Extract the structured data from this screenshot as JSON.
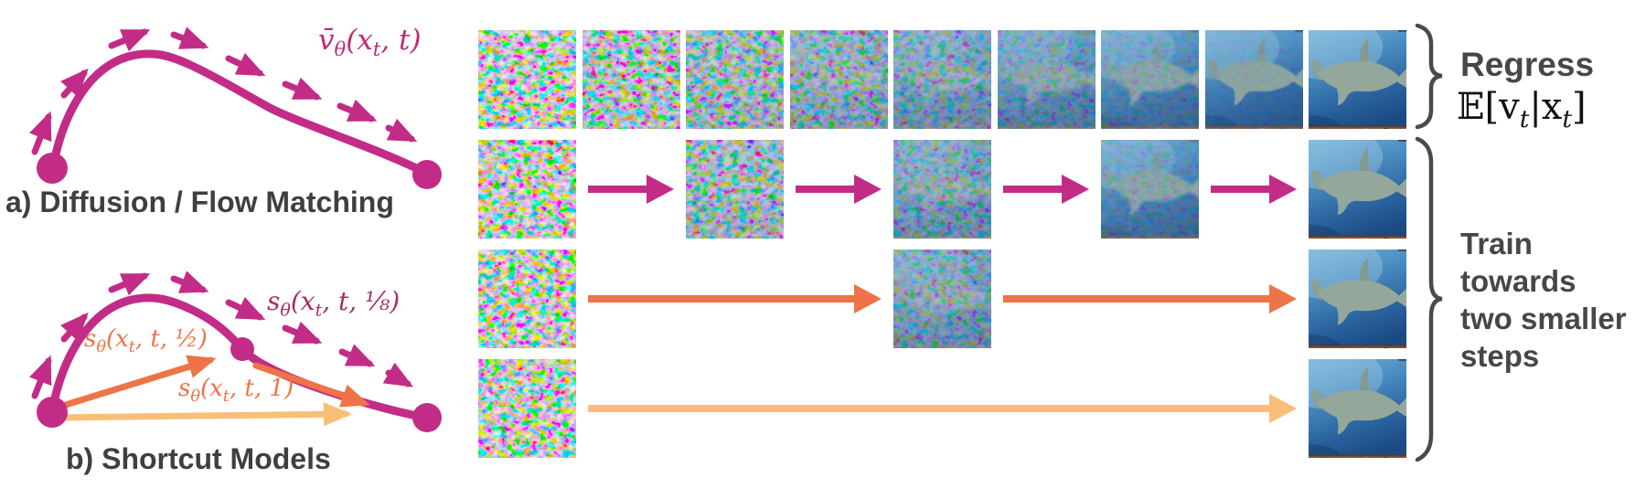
{
  "figure": {
    "panel_a": {
      "caption": "a) Diffusion / Flow Matching",
      "flow_label": "v̄_θ(x_t, t)"
    },
    "panel_b": {
      "caption": "b) Shortcut Models",
      "shortcut_eighth_label": "s_θ(x_t, t, ⅛)",
      "shortcut_half_label": "s_θ(x_t, t, ½)",
      "shortcut_one_label": "s_θ(x_t, t, 1)"
    },
    "right_labels": {
      "regress_title": "Regress",
      "regress_math": "𝔼[v_t|x_t]",
      "train_lines": [
        "Train",
        "towards",
        "two smaller",
        "steps"
      ]
    },
    "colors": {
      "magenta": "#c22c87",
      "dark_magenta_label": "#a82c62",
      "orange": "#ee7448",
      "light_orange": "#f9be77",
      "text_gray": "#474747"
    },
    "grid": {
      "description": "Denoising progression tiles; t = 0 is pure noise, t = 1 is clean shark image",
      "rows": [
        {
          "name": "regress-row",
          "tiles": [
            {
              "col": 1,
              "t": 0
            },
            {
              "col": 2,
              "t": 0.125
            },
            {
              "col": 3,
              "t": 0.25
            },
            {
              "col": 4,
              "t": 0.375
            },
            {
              "col": 5,
              "t": 0.5
            },
            {
              "col": 6,
              "t": 0.625
            },
            {
              "col": 7,
              "t": 0.75
            },
            {
              "col": 8,
              "t": 0.875
            },
            {
              "col": 9,
              "t": 1
            }
          ],
          "arrows": []
        },
        {
          "name": "shortcut-row-quarter-steps",
          "tiles": [
            {
              "col": 1,
              "t": 0
            },
            {
              "col": 3,
              "t": 0.25
            },
            {
              "col": 5,
              "t": 0.5
            },
            {
              "col": 7,
              "t": 0.75
            },
            {
              "col": 9,
              "t": 1
            }
          ],
          "arrows": [
            {
              "from": 1,
              "to": 3,
              "color": "magenta"
            },
            {
              "from": 3,
              "to": 5,
              "color": "magenta"
            },
            {
              "from": 5,
              "to": 7,
              "color": "magenta"
            },
            {
              "from": 7,
              "to": 9,
              "color": "magenta"
            }
          ]
        },
        {
          "name": "shortcut-row-half-steps",
          "tiles": [
            {
              "col": 1,
              "t": 0
            },
            {
              "col": 5,
              "t": 0.5
            },
            {
              "col": 9,
              "t": 1
            }
          ],
          "arrows": [
            {
              "from": 1,
              "to": 5,
              "color": "orange"
            },
            {
              "from": 5,
              "to": 9,
              "color": "orange"
            }
          ]
        },
        {
          "name": "shortcut-row-one-step",
          "tiles": [
            {
              "col": 1,
              "t": 0
            },
            {
              "col": 9,
              "t": 1
            }
          ],
          "arrows": [
            {
              "from": 1,
              "to": 9,
              "color": "light_orange"
            }
          ]
        }
      ]
    }
  }
}
